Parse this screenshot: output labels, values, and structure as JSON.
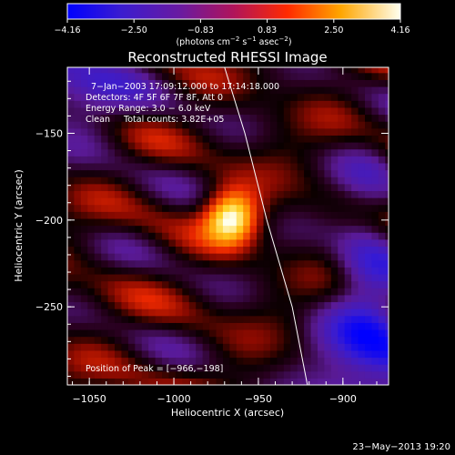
{
  "chart_data": {
    "type": "heatmap",
    "title": "Reconstructed RHESSI Image",
    "xlabel": "Heliocentric X (arcsec)",
    "ylabel": "Heliocentric Y (arcsec)",
    "xlim": [
      -1063,
      -873
    ],
    "ylim": [
      -295,
      -112
    ],
    "x_ticks": [
      {
        "value": -1050,
        "label": "−1050"
      },
      {
        "value": -1000,
        "label": "−1000"
      },
      {
        "value": -950,
        "label": "−950"
      },
      {
        "value": -900,
        "label": "−900"
      }
    ],
    "y_ticks": [
      {
        "value": -150,
        "label": "−150"
      },
      {
        "value": -200,
        "label": "−200"
      },
      {
        "value": -250,
        "label": "−250"
      }
    ],
    "colorbar": {
      "min": -4.16,
      "max": 4.16,
      "tick_labels": [
        "−4.16",
        "−2.50",
        "−0.83",
        "0.83",
        "2.50",
        "4.16"
      ],
      "unit_label_parts": [
        "(photons cm",
        "−2",
        " s",
        "−1",
        " asec",
        "−2",
        ")"
      ]
    },
    "annotations": [
      "7−Jan−2003 17:09:12.000 to 17:14:18.000",
      "Detectors: 4F 5F 6F 7F 8F, Att 0",
      "Energy Range: 3.0 − 6.0 keV",
      "Clean     Total counts: 3.82E+05",
      "Position of Peak = [−966,−198]"
    ],
    "peak": {
      "x": -966,
      "y": -198,
      "value": 4.16
    },
    "limb_line": [
      [
        -970,
        -112
      ],
      [
        -958,
        -150
      ],
      [
        -945,
        -200
      ],
      [
        -930,
        -250
      ],
      [
        -921,
        -295
      ]
    ],
    "footer": "23−May−2013 19:20",
    "colors": {
      "background": "#000000",
      "text": "#ffffff",
      "limb": "#ffffff"
    }
  }
}
